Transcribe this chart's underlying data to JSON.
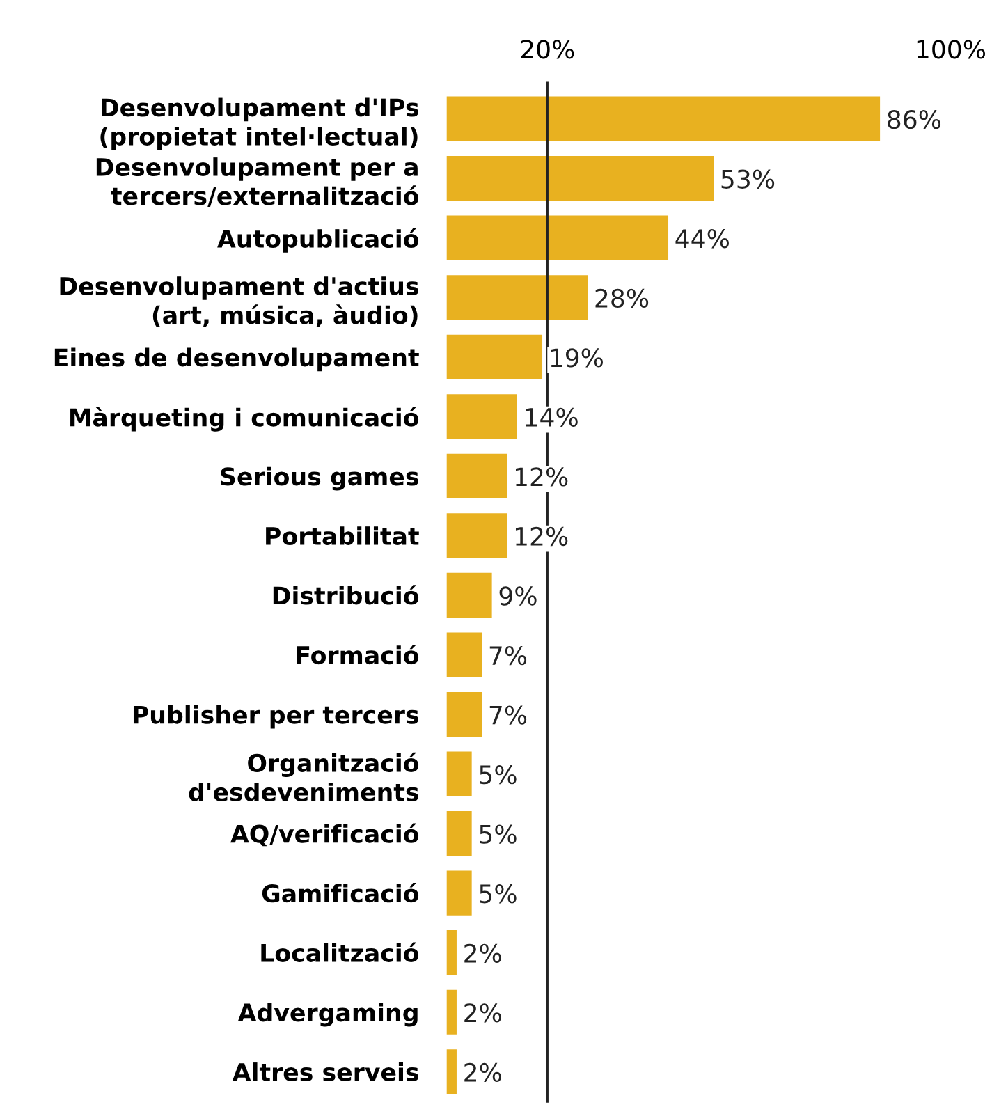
{
  "chart_data": {
    "type": "bar",
    "orientation": "horizontal",
    "categories": [
      "Desenvolupament d'IPs\n(propietat intel·lectual)",
      "Desenvolupament per a\ntercers/externalització",
      "Autopublicació",
      "Desenvolupament d'actius\n(art, música, àudio)",
      "Eines de desenvolupament",
      "Màrqueting i comunicació",
      "Serious games",
      "Portabilitat",
      "Distribució",
      "Formació",
      "Publisher per tercers",
      "Organització\nd'esdeveniments",
      "AQ/verificació",
      "Gamificació",
      "Localització",
      "Advergaming",
      "Altres serveis"
    ],
    "values": [
      86,
      53,
      44,
      28,
      19,
      14,
      12,
      12,
      9,
      7,
      7,
      5,
      5,
      5,
      2,
      2,
      2
    ],
    "color": "#e8b120",
    "xlim": [
      0,
      100
    ],
    "xticks": [
      {
        "value": 20,
        "label": "20%"
      },
      {
        "value": 100,
        "label": "100%"
      }
    ],
    "ref_lines": [
      {
        "axis": "x",
        "value": 20,
        "color": "#222222"
      }
    ],
    "value_labels": [
      "86%",
      "53%",
      "44%",
      "28%",
      "19%",
      "14%",
      "12%",
      "12%",
      "9%",
      "7%",
      "7%",
      "5%",
      "5%",
      "5%",
      "2%",
      "2%",
      "2%"
    ],
    "grid": false,
    "legend": false
  }
}
